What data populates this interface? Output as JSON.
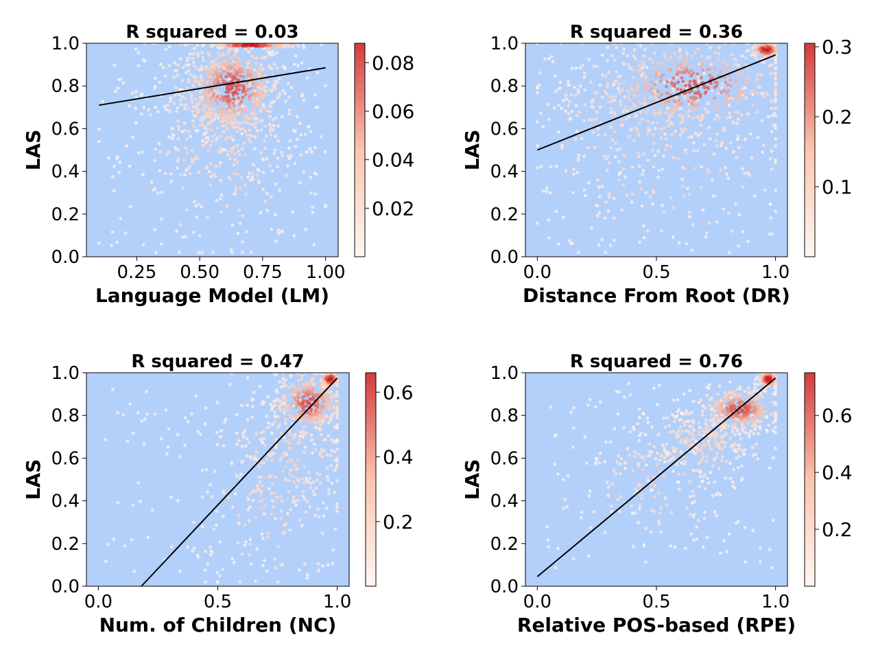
{
  "figure": {
    "ylabel": "LAS"
  },
  "colors": {
    "background": "#b3d0fa",
    "cmap_low": "#fff5f0",
    "cmap_mid": "#fcbba1",
    "cmap_high": "#cb181d",
    "fit_line": "#000000"
  },
  "chart_data": [
    {
      "type": "scatter",
      "title": "R squared = 0.03",
      "xlabel": "Language Model (LM)",
      "ylabel": "LAS",
      "xlim": [
        0.05,
        1.05
      ],
      "ylim": [
        0.0,
        1.0
      ],
      "xticks": [
        0.25,
        0.5,
        0.75,
        1.0
      ],
      "xtick_labels": [
        "0.25",
        "0.50",
        "0.75",
        "1.00"
      ],
      "yticks": [
        0.0,
        0.2,
        0.4,
        0.6,
        0.8,
        1.0
      ],
      "ytick_labels": [
        "0.0",
        "0.2",
        "0.4",
        "0.6",
        "0.8",
        "1.0"
      ],
      "r_squared": 0.03,
      "fit_line": {
        "x": [
          0.1,
          1.0
        ],
        "y": [
          0.71,
          0.885
        ]
      },
      "density_clusters": [
        {
          "cx": 0.63,
          "cy": 0.79,
          "sx": 0.1,
          "sy": 0.11,
          "n": 500
        },
        {
          "cx": 0.7,
          "cy": 0.99,
          "sx": 0.09,
          "sy": 0.006,
          "n": 160
        },
        {
          "cx": 0.58,
          "cy": 0.68,
          "sx": 0.16,
          "sy": 0.2,
          "n": 300
        },
        {
          "cx": 0.6,
          "cy": 0.5,
          "sx": 0.2,
          "sy": 0.25,
          "n": 160
        }
      ],
      "grid": false,
      "colorbar": {
        "max": 0.088,
        "ticks": [
          0.02,
          0.04,
          0.06,
          0.08
        ],
        "tick_labels": [
          "0.02",
          "0.04",
          "0.06",
          "0.08"
        ]
      }
    },
    {
      "type": "scatter",
      "title": "R squared = 0.36",
      "xlabel": "Distance From Root (DR)",
      "ylabel": "LAS",
      "xlim": [
        -0.05,
        1.05
      ],
      "ylim": [
        0.0,
        1.0
      ],
      "xticks": [
        0.0,
        0.5,
        1.0
      ],
      "xtick_labels": [
        "0.0",
        "0.5",
        "1.0"
      ],
      "yticks": [
        0.0,
        0.2,
        0.4,
        0.6,
        0.8,
        1.0
      ],
      "ytick_labels": [
        "0.0",
        "0.2",
        "0.4",
        "0.6",
        "0.8",
        "1.0"
      ],
      "r_squared": 0.36,
      "fit_line": {
        "x": [
          0.0,
          1.0
        ],
        "y": [
          0.5,
          0.945
        ]
      },
      "density_clusters": [
        {
          "cx": 0.65,
          "cy": 0.8,
          "sx": 0.2,
          "sy": 0.1,
          "n": 380
        },
        {
          "cx": 0.96,
          "cy": 0.97,
          "sx": 0.03,
          "sy": 0.02,
          "n": 120
        },
        {
          "cx": 0.45,
          "cy": 0.7,
          "sx": 0.25,
          "sy": 0.18,
          "n": 260
        },
        {
          "cx": 0.55,
          "cy": 0.45,
          "sx": 0.25,
          "sy": 0.22,
          "n": 120
        }
      ],
      "grid": false,
      "colorbar": {
        "max": 0.305,
        "ticks": [
          0.1,
          0.2,
          0.3
        ],
        "tick_labels": [
          "0.1",
          "0.2",
          "0.3"
        ]
      }
    },
    {
      "type": "scatter",
      "title": "R squared = 0.47",
      "xlabel": "Num. of Children (NC)",
      "ylabel": "LAS",
      "xlim": [
        -0.05,
        1.05
      ],
      "ylim": [
        0.0,
        1.0
      ],
      "xticks": [
        0.0,
        0.5,
        1.0
      ],
      "xtick_labels": [
        "0.0",
        "0.5",
        "1.0"
      ],
      "yticks": [
        0.0,
        0.2,
        0.4,
        0.6,
        0.8,
        1.0
      ],
      "ytick_labels": [
        "0.0",
        "0.2",
        "0.4",
        "0.6",
        "0.8",
        "1.0"
      ],
      "r_squared": 0.47,
      "fit_line": {
        "x": [
          0.18,
          1.0
        ],
        "y": [
          0.0,
          0.975
        ]
      },
      "density_clusters": [
        {
          "cx": 0.88,
          "cy": 0.86,
          "sx": 0.07,
          "sy": 0.07,
          "n": 320
        },
        {
          "cx": 0.97,
          "cy": 0.97,
          "sx": 0.02,
          "sy": 0.02,
          "n": 100
        },
        {
          "cx": 0.8,
          "cy": 0.6,
          "sx": 0.12,
          "sy": 0.18,
          "n": 220
        },
        {
          "cx": 0.7,
          "cy": 0.35,
          "sx": 0.15,
          "sy": 0.2,
          "n": 90
        }
      ],
      "grid": false,
      "colorbar": {
        "max": 0.66,
        "ticks": [
          0.2,
          0.4,
          0.6
        ],
        "tick_labels": [
          "0.2",
          "0.4",
          "0.6"
        ]
      }
    },
    {
      "type": "scatter",
      "title": "R squared = 0.76",
      "xlabel": "Relative POS-based (RPE)",
      "ylabel": "LAS",
      "xlim": [
        -0.05,
        1.05
      ],
      "ylim": [
        0.0,
        1.0
      ],
      "xticks": [
        0.0,
        0.5,
        1.0
      ],
      "xtick_labels": [
        "0.0",
        "0.5",
        "1.0"
      ],
      "yticks": [
        0.0,
        0.2,
        0.4,
        0.6,
        0.8,
        1.0
      ],
      "ytick_labels": [
        "0.0",
        "0.2",
        "0.4",
        "0.6",
        "0.8",
        "1.0"
      ],
      "r_squared": 0.76,
      "fit_line": {
        "x": [
          0.0,
          1.0
        ],
        "y": [
          0.045,
          0.975
        ]
      },
      "density_clusters": [
        {
          "cx": 0.85,
          "cy": 0.83,
          "sx": 0.08,
          "sy": 0.05,
          "n": 300
        },
        {
          "cx": 0.97,
          "cy": 0.97,
          "sx": 0.02,
          "sy": 0.02,
          "n": 110
        },
        {
          "cx": 0.7,
          "cy": 0.67,
          "sx": 0.12,
          "sy": 0.1,
          "n": 260
        },
        {
          "cx": 0.5,
          "cy": 0.5,
          "sx": 0.15,
          "sy": 0.14,
          "n": 110
        }
      ],
      "grid": false,
      "colorbar": {
        "max": 0.75,
        "ticks": [
          0.2,
          0.4,
          0.6
        ],
        "tick_labels": [
          "0.2",
          "0.4",
          "0.6"
        ]
      }
    }
  ]
}
